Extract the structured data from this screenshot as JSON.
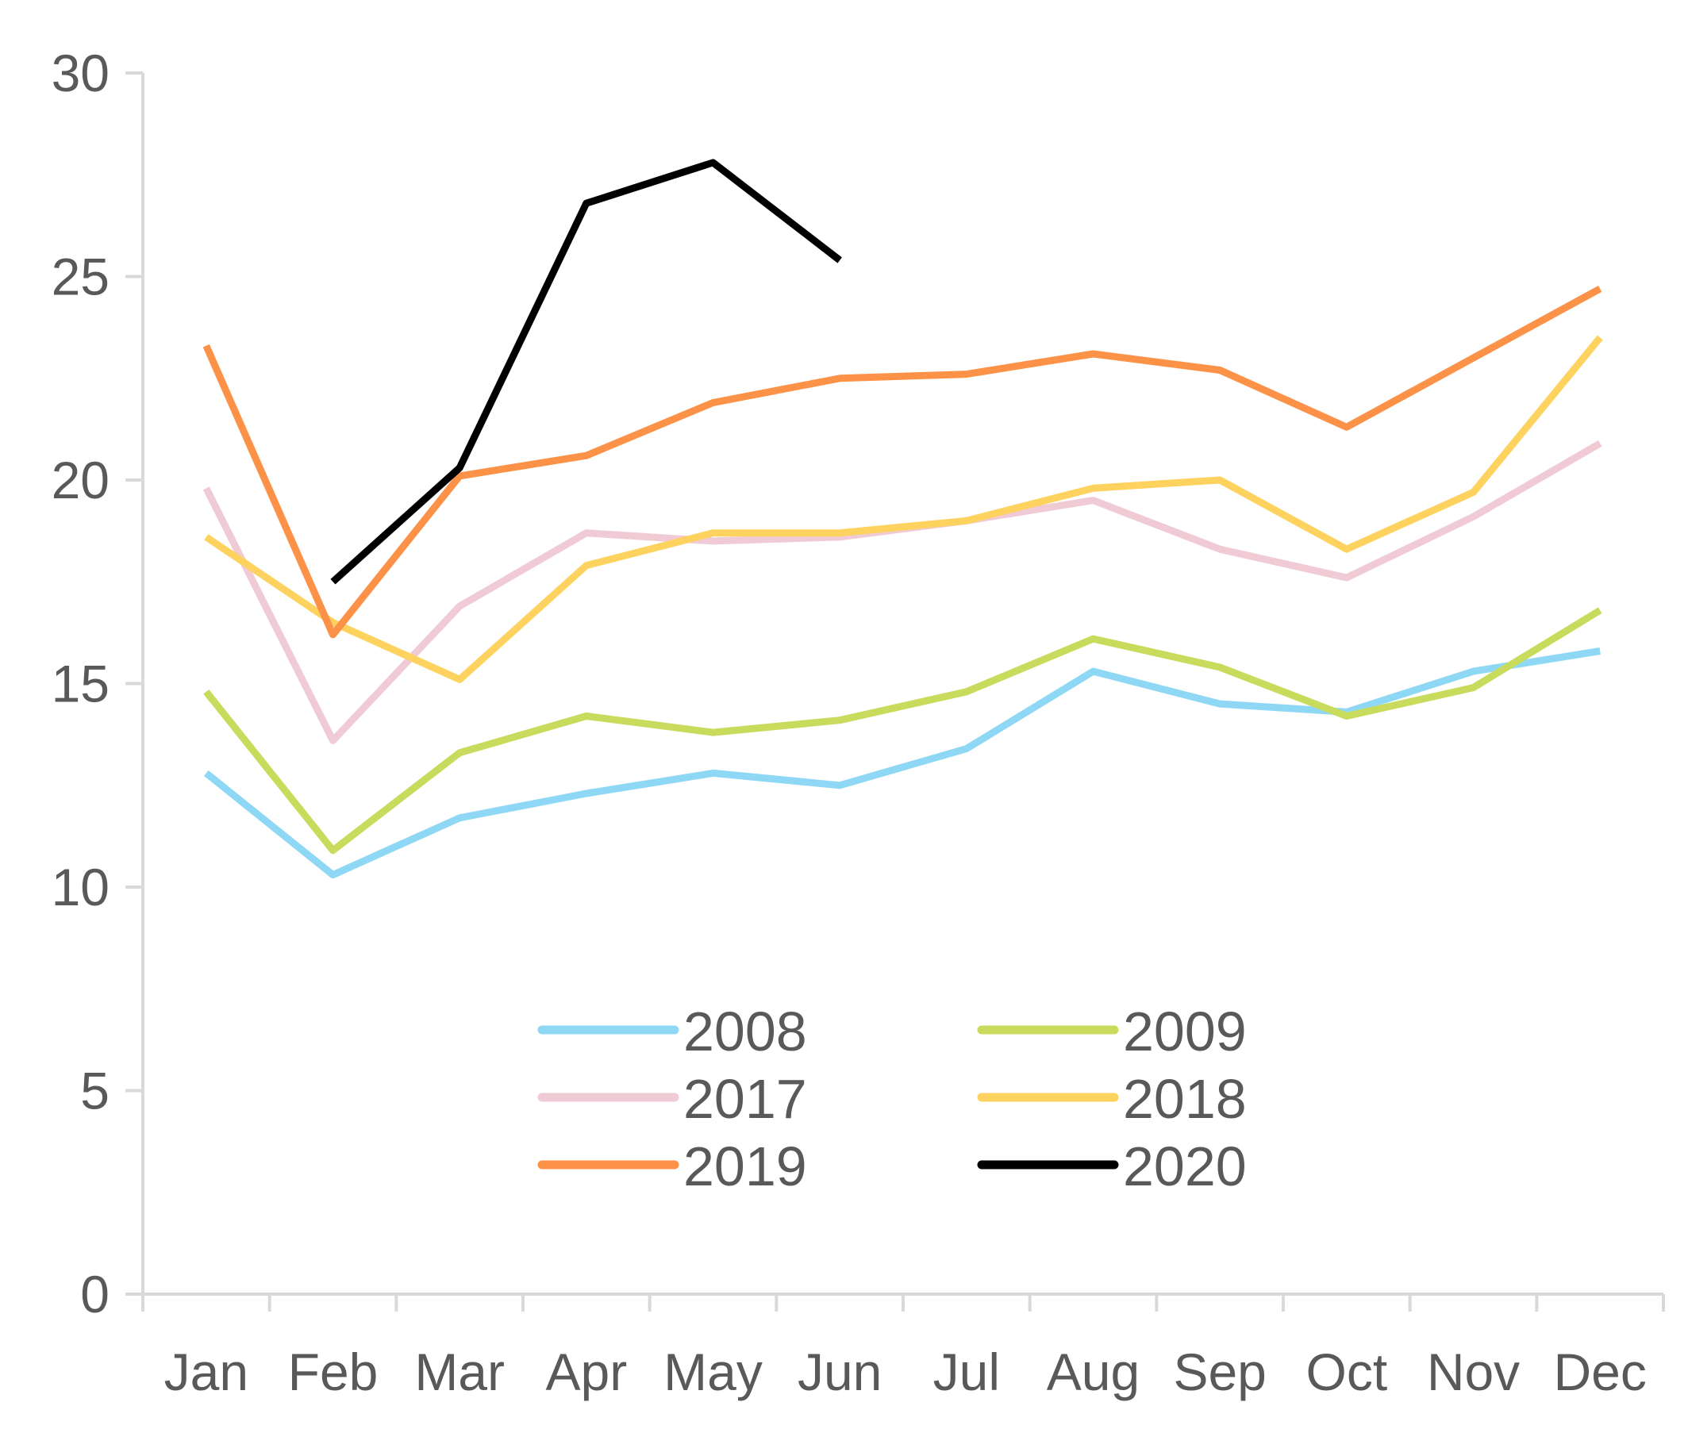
{
  "chart_data": {
    "type": "line",
    "title": "",
    "xlabel": "",
    "ylabel": "",
    "categories": [
      "Jan",
      "Feb",
      "Mar",
      "Apr",
      "May",
      "Jun",
      "Jul",
      "Aug",
      "Sep",
      "Oct",
      "Nov",
      "Dec"
    ],
    "yticks": [
      "0",
      "5",
      "10",
      "15",
      "20",
      "25",
      "30"
    ],
    "ylim": [
      0,
      30
    ],
    "grid": false,
    "legend_position": "center",
    "series": [
      {
        "name": "2008",
        "color": "#8fd8f5",
        "values": [
          12.8,
          10.3,
          11.7,
          12.3,
          12.8,
          12.5,
          13.4,
          15.3,
          14.5,
          14.3,
          15.3,
          15.8
        ]
      },
      {
        "name": "2009",
        "color": "#c9db5c",
        "values": [
          14.8,
          10.9,
          13.3,
          14.2,
          13.8,
          14.1,
          14.8,
          16.1,
          15.4,
          14.2,
          14.9,
          16.8
        ]
      },
      {
        "name": "2017",
        "color": "#f0cbd5",
        "values": [
          19.8,
          13.6,
          16.9,
          18.7,
          18.5,
          18.6,
          19.0,
          19.5,
          18.3,
          17.6,
          19.1,
          20.9
        ]
      },
      {
        "name": "2018",
        "color": "#fdd25f",
        "values": [
          18.6,
          16.5,
          15.1,
          17.9,
          18.7,
          18.7,
          19.0,
          19.8,
          20.0,
          18.3,
          19.7,
          23.5
        ]
      },
      {
        "name": "2019",
        "color": "#fc9248",
        "values": [
          23.3,
          16.2,
          20.1,
          20.6,
          21.9,
          22.5,
          22.6,
          23.1,
          22.7,
          21.3,
          23.0,
          24.7
        ]
      },
      {
        "name": "2020",
        "color": "#000000",
        "values": [
          null,
          17.5,
          20.3,
          26.8,
          27.8,
          25.4,
          null,
          null,
          null,
          null,
          null,
          null
        ]
      }
    ]
  }
}
